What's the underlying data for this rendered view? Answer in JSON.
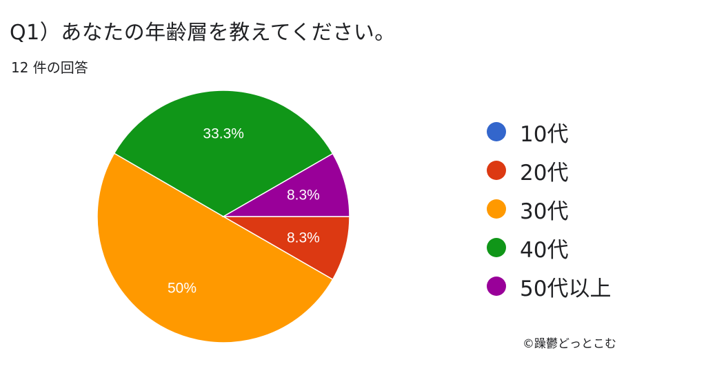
{
  "title": "Q1）あなたの年齢層を教えてください。",
  "subtitle": "12 件の回答",
  "credit": "©躁鬱どっとこむ",
  "chart_data": {
    "type": "pie",
    "slices": [
      {
        "label": "10代",
        "value": 0,
        "display": "",
        "color": "#3366cc"
      },
      {
        "label": "20代",
        "value": 8.3,
        "display": "8.3%",
        "color": "#dc3912"
      },
      {
        "label": "30代",
        "value": 50,
        "display": "50%",
        "color": "#ff9900"
      },
      {
        "label": "40代",
        "value": 33.3,
        "display": "33.3%",
        "color": "#109618"
      },
      {
        "label": "50代以上",
        "value": 8.3,
        "display": "8.3%",
        "color": "#990099"
      }
    ],
    "legend_position": "right"
  }
}
